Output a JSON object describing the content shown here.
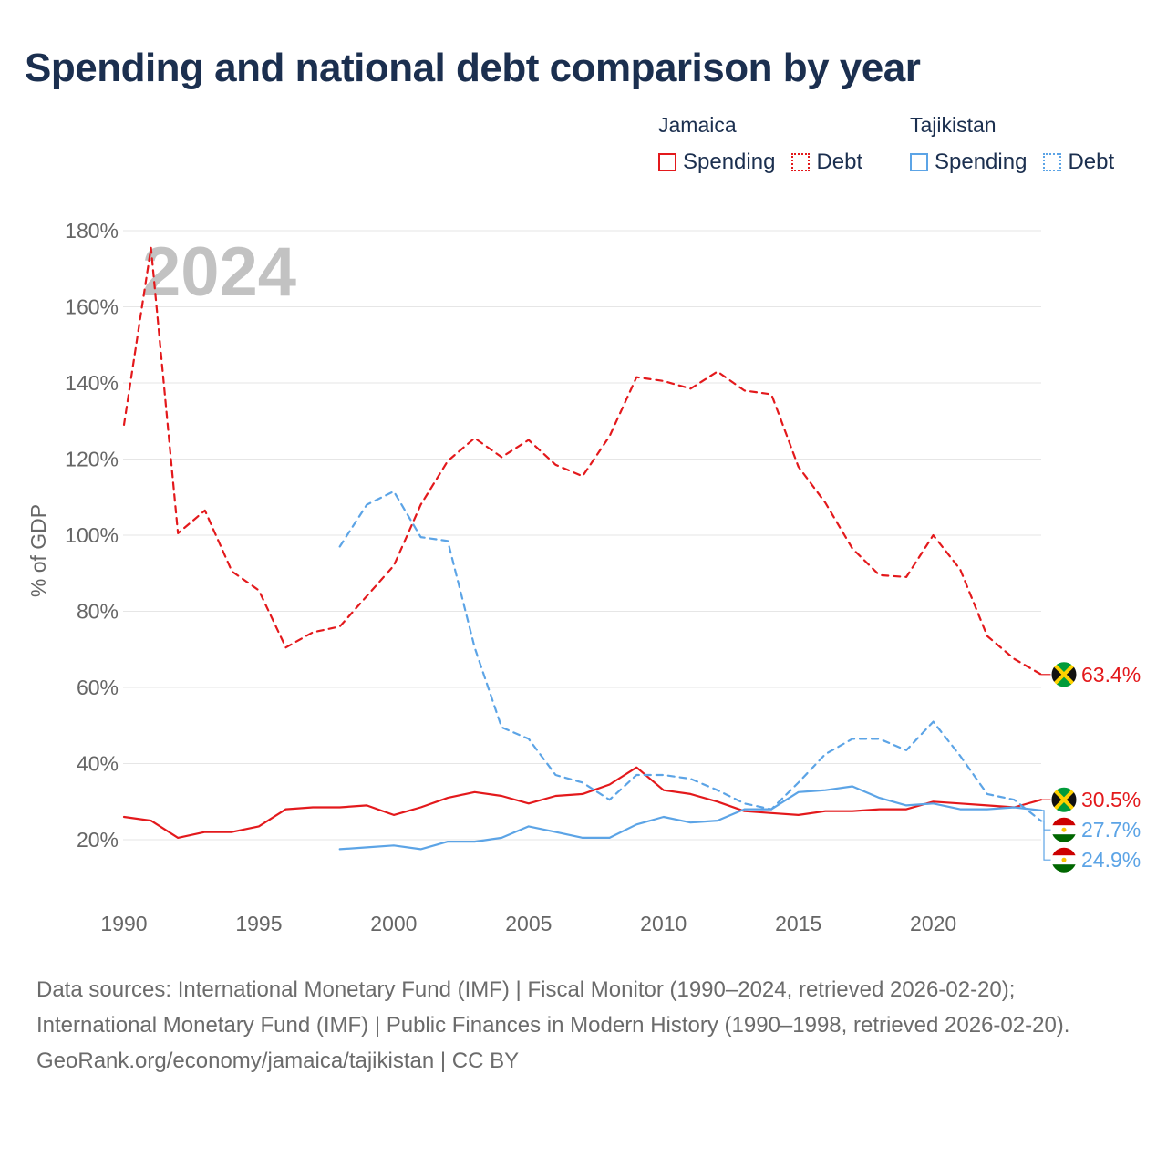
{
  "title": "Spending and national debt comparison by year",
  "legend": [
    {
      "country": "Jamaica",
      "items": [
        {
          "label": "Spending",
          "style": "solid",
          "color": "#e3191c"
        },
        {
          "label": "Debt",
          "style": "dotted",
          "color": "#e3191c"
        }
      ]
    },
    {
      "country": "Tajikistan",
      "items": [
        {
          "label": "Spending",
          "style": "solid",
          "color": "#5ca4e6"
        },
        {
          "label": "Debt",
          "style": "dotted",
          "color": "#5ca4e6"
        }
      ]
    }
  ],
  "footer": {
    "sources": "Data sources: International Monetary Fund (IMF) | Fiscal Monitor (1990–2024, retrieved 2026-02-20); International Monetary Fund (IMF) | Public Finances in Modern History (1990–1998, retrieved 2026-02-20).",
    "credit": "GeoRank.org/economy/jamaica/tajikistan | CC BY"
  },
  "chart_data": {
    "type": "line",
    "year_watermark": "2024",
    "ylabel": "% of GDP",
    "xlabel": "",
    "xlim": [
      1990,
      2024
    ],
    "ylim": [
      10,
      180
    ],
    "yticks": [
      20,
      40,
      60,
      80,
      100,
      120,
      140,
      160,
      180
    ],
    "ytick_labels": [
      "20%",
      "40%",
      "60%",
      "80%",
      "100%",
      "120%",
      "140%",
      "160%",
      "180%"
    ],
    "xticks": [
      1990,
      1995,
      2000,
      2005,
      2010,
      2015,
      2020
    ],
    "xtick_labels": [
      "1990",
      "1995",
      "2000",
      "2005",
      "2010",
      "2015",
      "2020"
    ],
    "grid": true,
    "series": [
      {
        "name": "Jamaica Debt",
        "country": "Jamaica",
        "metric": "Debt",
        "color": "#e3191c",
        "dash": "dashed",
        "x": [
          1990,
          1991,
          1992,
          1993,
          1994,
          1995,
          1996,
          1997,
          1998,
          1999,
          2000,
          2001,
          2002,
          2003,
          2004,
          2005,
          2006,
          2007,
          2008,
          2009,
          2010,
          2011,
          2012,
          2013,
          2014,
          2015,
          2016,
          2017,
          2018,
          2019,
          2020,
          2021,
          2022,
          2023,
          2024
        ],
        "values": [
          129,
          175.5,
          100.5,
          106.5,
          90.5,
          85.5,
          70.5,
          74.5,
          76,
          84,
          92,
          108,
          119.5,
          125.5,
          120.5,
          125,
          118.5,
          115.5,
          126,
          141.5,
          140.5,
          138.5,
          143,
          138,
          137,
          118,
          108.5,
          96.5,
          89.5,
          89,
          100,
          91,
          73.5,
          67.5,
          63.4
        ],
        "end_label": "63.4%"
      },
      {
        "name": "Jamaica Spending",
        "country": "Jamaica",
        "metric": "Spending",
        "color": "#e3191c",
        "dash": "solid",
        "x": [
          1990,
          1991,
          1992,
          1993,
          1994,
          1995,
          1996,
          1997,
          1998,
          1999,
          2000,
          2001,
          2002,
          2003,
          2004,
          2005,
          2006,
          2007,
          2008,
          2009,
          2010,
          2011,
          2012,
          2013,
          2014,
          2015,
          2016,
          2017,
          2018,
          2019,
          2020,
          2021,
          2022,
          2023,
          2024
        ],
        "values": [
          26,
          25,
          20.5,
          22,
          22,
          23.5,
          28,
          28.5,
          28.5,
          29,
          26.5,
          28.5,
          31,
          32.5,
          31.5,
          29.5,
          31.5,
          32,
          34.5,
          39,
          33,
          32,
          30,
          27.5,
          27,
          26.5,
          27.5,
          27.5,
          28,
          28,
          30,
          29.5,
          29,
          28.5,
          30.5
        ],
        "end_label": "30.5%"
      },
      {
        "name": "Tajikistan Debt",
        "country": "Tajikistan",
        "metric": "Debt",
        "color": "#5ca4e6",
        "dash": "dashed",
        "x": [
          1998,
          1999,
          2000,
          2001,
          2002,
          2003,
          2004,
          2005,
          2006,
          2007,
          2008,
          2009,
          2010,
          2011,
          2012,
          2013,
          2014,
          2015,
          2016,
          2017,
          2018,
          2019,
          2020,
          2021,
          2022,
          2023,
          2024
        ],
        "values": [
          97,
          108,
          111.5,
          99.5,
          98.5,
          70.5,
          49.5,
          46.5,
          37,
          35,
          30.5,
          37,
          37,
          36,
          33,
          29.5,
          28,
          35,
          42.5,
          46.5,
          46.5,
          43.5,
          51,
          42,
          32,
          30.5,
          24.9
        ],
        "end_label": "24.9%"
      },
      {
        "name": "Tajikistan Spending",
        "country": "Tajikistan",
        "metric": "Spending",
        "color": "#5ca4e6",
        "dash": "solid",
        "x": [
          1998,
          1999,
          2000,
          2001,
          2002,
          2003,
          2004,
          2005,
          2006,
          2007,
          2008,
          2009,
          2010,
          2011,
          2012,
          2013,
          2014,
          2015,
          2016,
          2017,
          2018,
          2019,
          2020,
          2021,
          2022,
          2023,
          2024
        ],
        "values": [
          17.5,
          18,
          18.5,
          17.5,
          19.5,
          19.5,
          20.5,
          23.5,
          22,
          20.5,
          20.5,
          24,
          26,
          24.5,
          25,
          28,
          28,
          32.5,
          33,
          34,
          31,
          29,
          29.5,
          28,
          28,
          28.5,
          27.7
        ],
        "end_label": "27.7%"
      }
    ]
  }
}
